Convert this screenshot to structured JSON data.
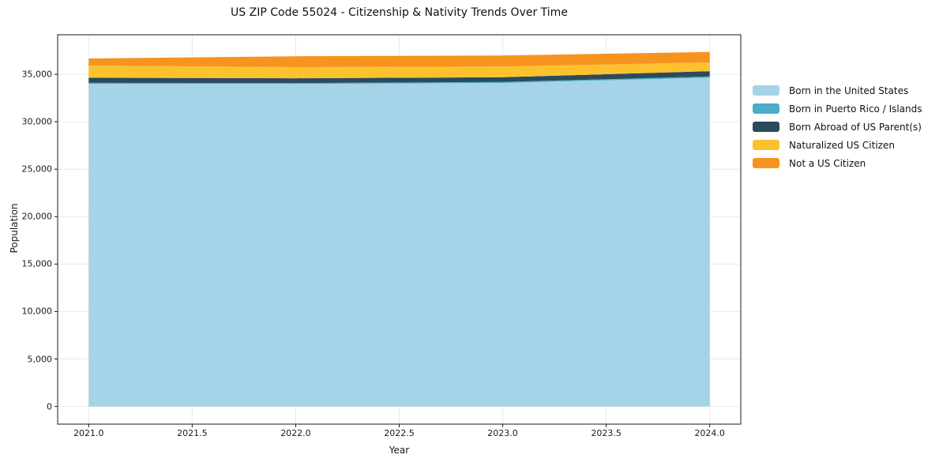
{
  "chart_data": {
    "type": "area",
    "stacked": true,
    "title": "US ZIP Code 55024 - Citizenship & Nativity Trends Over Time",
    "xlabel": "Year",
    "ylabel": "Population",
    "x": [
      2021,
      2022,
      2023,
      2024
    ],
    "series": [
      {
        "name": "Born in the United States",
        "color": "#a5d3e8",
        "values": [
          34000,
          33980,
          34090,
          34650
        ]
      },
      {
        "name": "Born in Puerto Rico / Islands",
        "color": "#4badc7",
        "values": [
          100,
          100,
          100,
          120
        ]
      },
      {
        "name": "Born Abroad of US Parent(s)",
        "color": "#2b4b5c",
        "values": [
          540,
          500,
          500,
          560
        ]
      },
      {
        "name": "Naturalized US Citizen",
        "color": "#fcc22e",
        "values": [
          1280,
          1170,
          1120,
          920
        ]
      },
      {
        "name": "Not a US Citizen",
        "color": "#f7941f",
        "values": [
          750,
          1150,
          1170,
          1110
        ]
      }
    ],
    "xlim": [
      2020.85,
      2024.15
    ],
    "ylim": [
      -1865,
      39165
    ],
    "xticks": {
      "values": [
        2021.0,
        2021.5,
        2022.0,
        2022.5,
        2023.0,
        2023.5,
        2024.0
      ],
      "labels": [
        "2021.0",
        "2021.5",
        "2022.0",
        "2022.5",
        "2023.0",
        "2023.5",
        "2024.0"
      ]
    },
    "yticks": {
      "values": [
        0,
        5000,
        10000,
        15000,
        20000,
        25000,
        30000,
        35000
      ],
      "labels": [
        "0",
        "5,000",
        "10,000",
        "15,000",
        "20,000",
        "25,000",
        "30,000",
        "35,000"
      ]
    },
    "grid": true,
    "legend_position": "right-outside",
    "colors": {
      "grid": "#e9e9e9",
      "frame": "#1a1a1a",
      "background": "#ffffff"
    }
  }
}
